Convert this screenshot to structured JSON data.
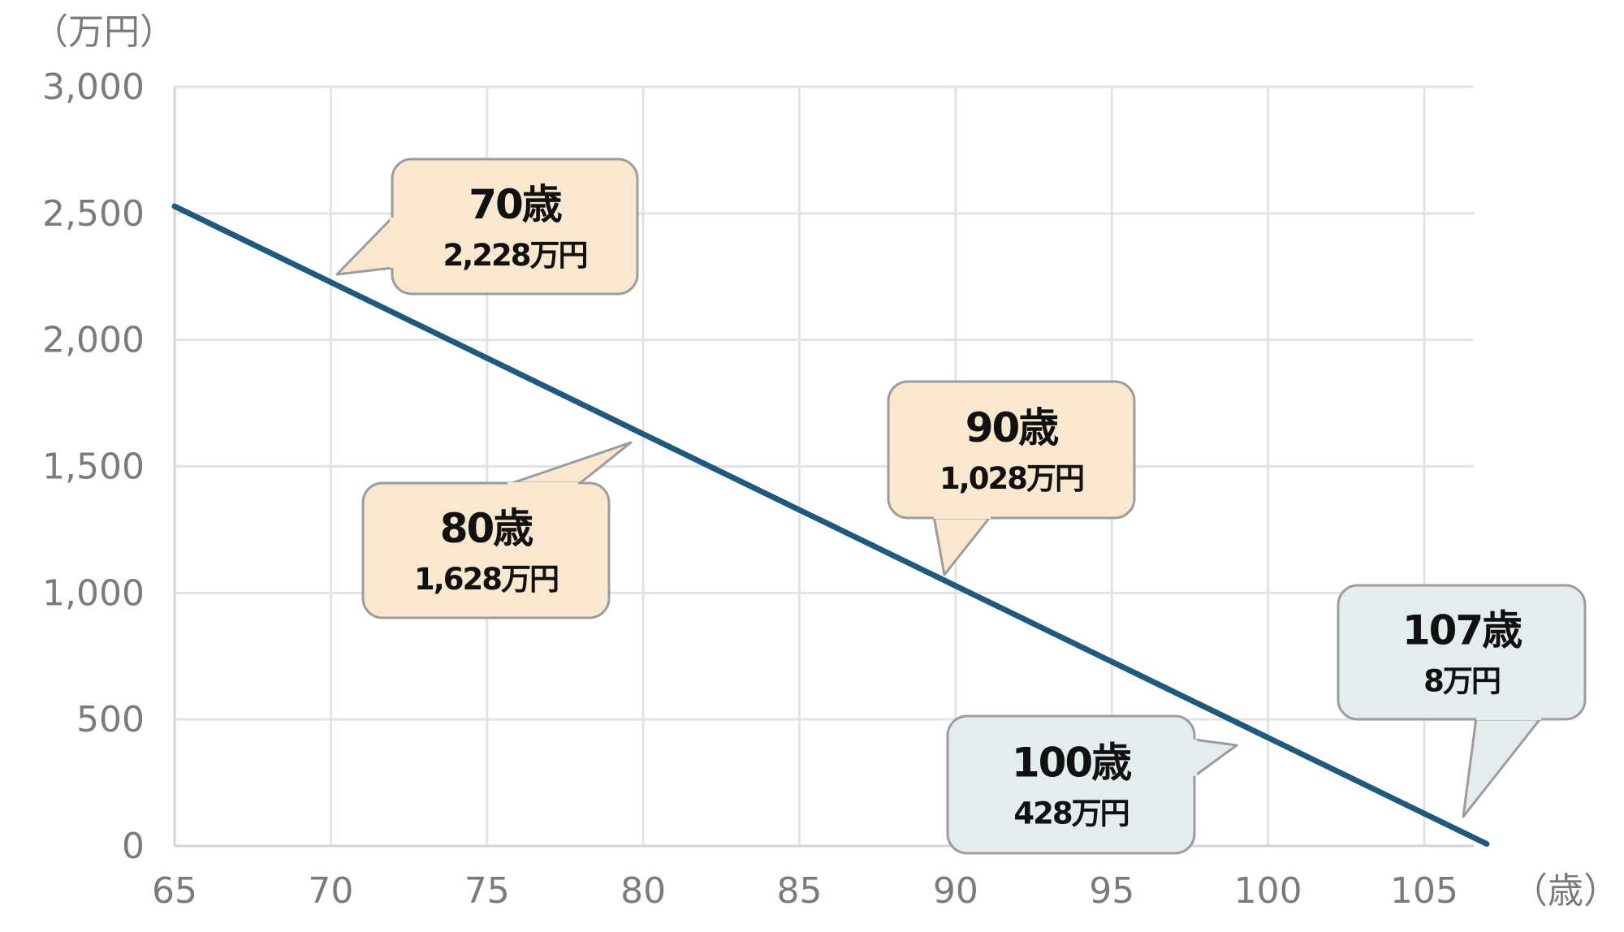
{
  "chart_data": {
    "type": "line",
    "title": "",
    "xlabel": "（歳）",
    "ylabel": "（万円）",
    "xlim": [
      65,
      107
    ],
    "ylim": [
      0,
      3000
    ],
    "x_ticks": [
      "65",
      "70",
      "75",
      "80",
      "85",
      "90",
      "95",
      "100",
      "105"
    ],
    "y_ticks": [
      "0",
      "500",
      "1,000",
      "1,500",
      "2,000",
      "2,500",
      "3,000"
    ],
    "grid": true,
    "colors": {
      "line": "#1f5a7d",
      "grid": "#e3e3e3",
      "callout_warm": "#f9e8cf",
      "callout_cool": "#e5ecee",
      "callout_border": "#9c9c9c"
    },
    "series": [
      {
        "x": [
          65,
          70,
          75,
          80,
          85,
          90,
          95,
          100,
          105,
          107
        ],
        "y": [
          2528,
          2228,
          1928,
          1628,
          1328,
          1028,
          728,
          428,
          128,
          8
        ]
      }
    ],
    "annotations": [
      {
        "title": "70歳",
        "value": "2,228万円",
        "x": 70,
        "y": 2228,
        "tone": "warm"
      },
      {
        "title": "80歳",
        "value": "1,628万円",
        "x": 80,
        "y": 1628,
        "tone": "warm"
      },
      {
        "title": "90歳",
        "value": "1,028万円",
        "x": 90,
        "y": 1028,
        "tone": "warm"
      },
      {
        "title": "100歳",
        "value": "428万円",
        "x": 100,
        "y": 428,
        "tone": "cool"
      },
      {
        "title": "107歳",
        "value": "8万円",
        "x": 107,
        "y": 8,
        "tone": "cool"
      }
    ]
  }
}
